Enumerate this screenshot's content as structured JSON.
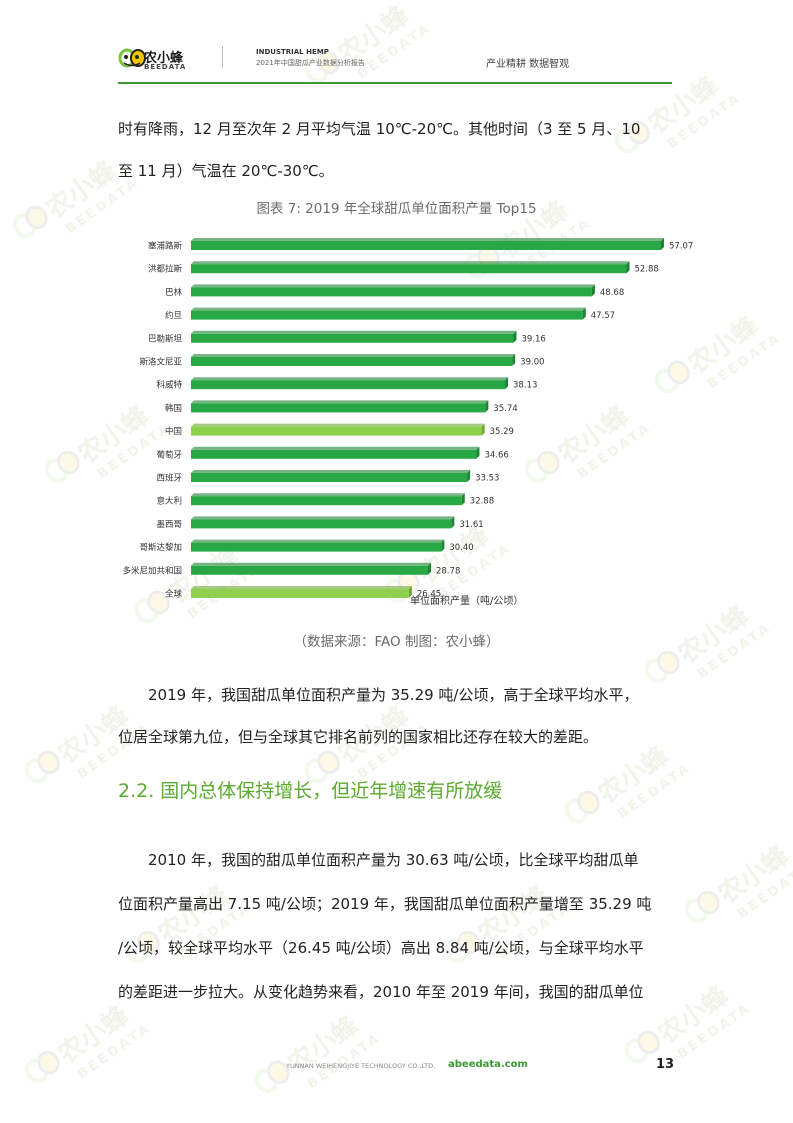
{
  "header": {
    "logo_name": "农小蜂",
    "logo_sub": "BEEDATA",
    "title_en": "INDUSTRIAL HEMP",
    "report_title": "2021年中国甜瓜产业数据分析报告",
    "slogan": "产业精耕  数据智观"
  },
  "watermark": {
    "name": "农小蜂",
    "sub": "BEEDATA"
  },
  "intro": {
    "line1": "时有降雨，12 月至次年 2 月平均气温 10℃-20℃。其他时间（3 至 5 月、10",
    "line2": "至 11 月）气温在 20℃-30℃。"
  },
  "figure": {
    "caption": "图表 7:   2019 年全球甜瓜单位面积产量 Top15",
    "source": "（数据来源：FAO  制图：农小蜂）"
  },
  "chart_data": {
    "type": "bar",
    "orientation": "horizontal",
    "categories": [
      "塞浦路斯",
      "洪都拉斯",
      "巴林",
      "约旦",
      "巴勒斯坦",
      "斯洛文尼亚",
      "科威特",
      "韩国",
      "中国",
      "葡萄牙",
      "西班牙",
      "意大利",
      "墨西哥",
      "哥斯达黎加",
      "多米尼加共和国",
      "全球"
    ],
    "values": [
      57.07,
      52.88,
      48.68,
      47.57,
      39.16,
      39.0,
      38.13,
      35.74,
      35.29,
      34.66,
      33.53,
      32.88,
      31.61,
      30.4,
      28.78,
      26.45
    ],
    "value_labels": [
      "57.07",
      "52.88",
      "48.68",
      "47.57",
      "39.16",
      "39.00",
      "38.13",
      "35.74",
      "35.29",
      "34.66",
      "33.53",
      "32.88",
      "31.61",
      "30.40",
      "28.78",
      "26.45"
    ],
    "highlight": [
      "中国",
      "全球"
    ],
    "axis_note": "单位面积产量（吨/公顷）",
    "colors": {
      "bar": "#27a845",
      "bar_dark": "#1c8434",
      "highlight": "#8fd14f",
      "highlight_dark": "#6aa833"
    }
  },
  "body_para1": {
    "line1": "2019 年，我国甜瓜单位面积产量为 35.29 吨/公顷，高于全球平均水平，",
    "line2": "位居全球第九位，但与全球其它排名前列的国家相比还存在较大的差距。"
  },
  "section": {
    "title": "2.2. 国内总体保持增长，但近年增速有所放缓"
  },
  "body_para2": {
    "line1": "2010 年，我国的甜瓜单位面积产量为 30.63 吨/公顷，比全球平均甜瓜单",
    "line2": "位面积产量高出 7.15 吨/公顷；2019 年，我国甜瓜单位面积产量增至 35.29 吨",
    "line3": "/公顷，较全球平均水平（26.45 吨/公顷）高出 8.84 吨/公顷，与全球平均水平",
    "line4": "的差距进一步拉大。从变化趋势来看，2010 年至 2019 年间，我国的甜瓜单位"
  },
  "footer": {
    "company": "YUNNAN WEIHENGJIYE TECHNOLOGY CO.,LTD.",
    "url": "abeedata.com",
    "page": "13"
  },
  "accent": "#5aab2e"
}
